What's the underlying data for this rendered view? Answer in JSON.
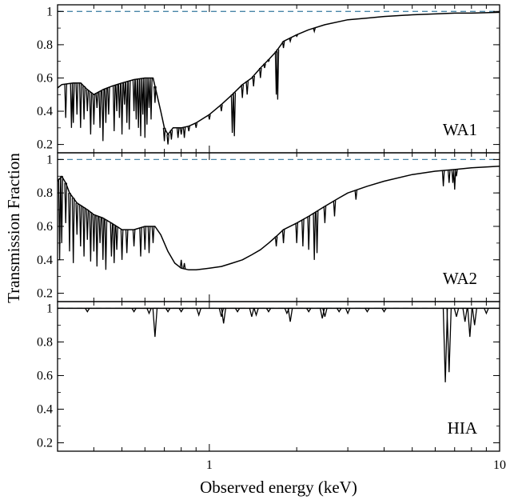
{
  "chart_data": {
    "type": "line",
    "ylabel": "Transmission Fraction",
    "xlabel": "Observed energy (keV)",
    "xscale": "log",
    "xlim": [
      0.3,
      10
    ],
    "x_tick_labels": [
      {
        "value": 1,
        "label": "1"
      },
      {
        "value": 10,
        "label": "10"
      }
    ],
    "y_tick_labels": [
      "0.2",
      "0.4",
      "0.6",
      "0.8",
      "1"
    ],
    "reference_line": {
      "y": 1,
      "style": "dashed",
      "color": "#4a86a8"
    },
    "line_color": "#000000",
    "panels": [
      {
        "label": "WA1",
        "ylim": [
          0.15,
          1.04
        ],
        "continuum": [
          [
            0.3,
            0.54
          ],
          [
            0.31,
            0.56
          ],
          [
            0.34,
            0.57
          ],
          [
            0.36,
            0.57
          ],
          [
            0.38,
            0.53
          ],
          [
            0.4,
            0.5
          ],
          [
            0.43,
            0.53
          ],
          [
            0.46,
            0.55
          ],
          [
            0.5,
            0.57
          ],
          [
            0.55,
            0.59
          ],
          [
            0.6,
            0.6
          ],
          [
            0.64,
            0.6
          ],
          [
            0.66,
            0.5
          ],
          [
            0.68,
            0.4
          ],
          [
            0.7,
            0.3
          ],
          [
            0.72,
            0.26
          ],
          [
            0.75,
            0.3
          ],
          [
            0.8,
            0.3
          ],
          [
            0.85,
            0.31
          ],
          [
            0.9,
            0.33
          ],
          [
            1.0,
            0.38
          ],
          [
            1.1,
            0.44
          ],
          [
            1.2,
            0.5
          ],
          [
            1.3,
            0.56
          ],
          [
            1.4,
            0.6
          ],
          [
            1.5,
            0.66
          ],
          [
            1.6,
            0.71
          ],
          [
            1.7,
            0.76
          ],
          [
            1.8,
            0.82
          ],
          [
            2.0,
            0.86
          ],
          [
            2.2,
            0.89
          ],
          [
            2.5,
            0.92
          ],
          [
            3.0,
            0.95
          ],
          [
            3.5,
            0.96
          ],
          [
            4.0,
            0.97
          ],
          [
            5.0,
            0.98
          ],
          [
            6.0,
            0.985
          ],
          [
            7.0,
            0.99
          ],
          [
            8.0,
            0.99
          ],
          [
            10.0,
            0.995
          ]
        ],
        "absorption_lines": [
          [
            0.32,
            0.36
          ],
          [
            0.335,
            0.3
          ],
          [
            0.34,
            0.33
          ],
          [
            0.35,
            0.38
          ],
          [
            0.36,
            0.3
          ],
          [
            0.37,
            0.35
          ],
          [
            0.38,
            0.4
          ],
          [
            0.39,
            0.26
          ],
          [
            0.4,
            0.32
          ],
          [
            0.41,
            0.42
          ],
          [
            0.42,
            0.3
          ],
          [
            0.43,
            0.22
          ],
          [
            0.44,
            0.33
          ],
          [
            0.45,
            0.38
          ],
          [
            0.47,
            0.28
          ],
          [
            0.48,
            0.4
          ],
          [
            0.49,
            0.36
          ],
          [
            0.5,
            0.26
          ],
          [
            0.51,
            0.44
          ],
          [
            0.52,
            0.33
          ],
          [
            0.53,
            0.29
          ],
          [
            0.55,
            0.4
          ],
          [
            0.56,
            0.35
          ],
          [
            0.57,
            0.3
          ],
          [
            0.58,
            0.25
          ],
          [
            0.59,
            0.38
          ],
          [
            0.6,
            0.24
          ],
          [
            0.61,
            0.32
          ],
          [
            0.62,
            0.42
          ],
          [
            0.63,
            0.35
          ],
          [
            0.65,
            0.45
          ],
          [
            0.7,
            0.22
          ],
          [
            0.72,
            0.2
          ],
          [
            0.74,
            0.23
          ],
          [
            0.78,
            0.24
          ],
          [
            0.8,
            0.26
          ],
          [
            0.82,
            0.24
          ],
          [
            0.85,
            0.28
          ],
          [
            0.9,
            0.3
          ],
          [
            1.0,
            0.35
          ],
          [
            1.1,
            0.4
          ],
          [
            1.2,
            0.27
          ],
          [
            1.22,
            0.25
          ],
          [
            1.3,
            0.48
          ],
          [
            1.35,
            0.5
          ],
          [
            1.42,
            0.55
          ],
          [
            1.5,
            0.6
          ],
          [
            1.55,
            0.66
          ],
          [
            1.6,
            0.7
          ],
          [
            1.7,
            0.5
          ],
          [
            1.72,
            0.47
          ],
          [
            1.8,
            0.78
          ],
          [
            1.9,
            0.82
          ],
          [
            2.0,
            0.85
          ],
          [
            2.3,
            0.88
          ]
        ]
      },
      {
        "label": "WA2",
        "ylim": [
          0.15,
          1.04
        ],
        "continuum": [
          [
            0.3,
            0.87
          ],
          [
            0.31,
            0.9
          ],
          [
            0.32,
            0.86
          ],
          [
            0.33,
            0.8
          ],
          [
            0.35,
            0.74
          ],
          [
            0.38,
            0.7
          ],
          [
            0.4,
            0.67
          ],
          [
            0.43,
            0.65
          ],
          [
            0.46,
            0.62
          ],
          [
            0.5,
            0.58
          ],
          [
            0.55,
            0.58
          ],
          [
            0.6,
            0.6
          ],
          [
            0.65,
            0.6
          ],
          [
            0.68,
            0.55
          ],
          [
            0.72,
            0.45
          ],
          [
            0.76,
            0.38
          ],
          [
            0.8,
            0.35
          ],
          [
            0.85,
            0.34
          ],
          [
            0.9,
            0.34
          ],
          [
            1.0,
            0.35
          ],
          [
            1.1,
            0.36
          ],
          [
            1.2,
            0.38
          ],
          [
            1.3,
            0.4
          ],
          [
            1.4,
            0.43
          ],
          [
            1.5,
            0.46
          ],
          [
            1.6,
            0.5
          ],
          [
            1.7,
            0.54
          ],
          [
            1.8,
            0.58
          ],
          [
            2.0,
            0.62
          ],
          [
            2.2,
            0.66
          ],
          [
            2.5,
            0.72
          ],
          [
            2.8,
            0.77
          ],
          [
            3.0,
            0.8
          ],
          [
            3.5,
            0.84
          ],
          [
            4.0,
            0.87
          ],
          [
            5.0,
            0.91
          ],
          [
            6.0,
            0.93
          ],
          [
            7.0,
            0.94
          ],
          [
            8.0,
            0.95
          ],
          [
            10.0,
            0.96
          ]
        ],
        "absorption_lines": [
          [
            0.305,
            0.4
          ],
          [
            0.31,
            0.5
          ],
          [
            0.32,
            0.62
          ],
          [
            0.33,
            0.45
          ],
          [
            0.34,
            0.38
          ],
          [
            0.35,
            0.55
          ],
          [
            0.36,
            0.48
          ],
          [
            0.37,
            0.42
          ],
          [
            0.38,
            0.52
          ],
          [
            0.39,
            0.39
          ],
          [
            0.4,
            0.45
          ],
          [
            0.41,
            0.36
          ],
          [
            0.42,
            0.5
          ],
          [
            0.43,
            0.4
          ],
          [
            0.44,
            0.34
          ],
          [
            0.46,
            0.42
          ],
          [
            0.47,
            0.38
          ],
          [
            0.48,
            0.46
          ],
          [
            0.5,
            0.4
          ],
          [
            0.52,
            0.44
          ],
          [
            0.55,
            0.48
          ],
          [
            0.58,
            0.42
          ],
          [
            0.6,
            0.46
          ],
          [
            0.62,
            0.44
          ],
          [
            0.64,
            0.5
          ],
          [
            0.8,
            0.4
          ],
          [
            0.82,
            0.38
          ],
          [
            1.7,
            0.48
          ],
          [
            1.8,
            0.5
          ],
          [
            2.0,
            0.5
          ],
          [
            2.1,
            0.48
          ],
          [
            2.2,
            0.46
          ],
          [
            2.3,
            0.4
          ],
          [
            2.35,
            0.44
          ],
          [
            2.5,
            0.62
          ],
          [
            2.7,
            0.66
          ],
          [
            3.2,
            0.76
          ],
          [
            6.4,
            0.84
          ],
          [
            6.7,
            0.86
          ],
          [
            6.9,
            0.86
          ],
          [
            7.0,
            0.82
          ],
          [
            7.1,
            0.9
          ]
        ]
      },
      {
        "label": "HIA",
        "ylim": [
          0.15,
          1.04
        ],
        "continuum": [
          [
            0.3,
            1.0
          ],
          [
            10.0,
            1.0
          ]
        ],
        "absorption_lines": [
          [
            0.38,
            0.98
          ],
          [
            0.55,
            0.98
          ],
          [
            0.62,
            0.97
          ],
          [
            0.65,
            0.83
          ],
          [
            0.72,
            0.98
          ],
          [
            0.8,
            0.98
          ],
          [
            0.92,
            0.96
          ],
          [
            1.1,
            0.95
          ],
          [
            1.12,
            0.91
          ],
          [
            1.25,
            0.98
          ],
          [
            1.4,
            0.95
          ],
          [
            1.45,
            0.96
          ],
          [
            1.6,
            0.98
          ],
          [
            1.85,
            0.97
          ],
          [
            1.9,
            0.92
          ],
          [
            2.2,
            0.98
          ],
          [
            2.45,
            0.94
          ],
          [
            2.5,
            0.95
          ],
          [
            2.8,
            0.98
          ],
          [
            3.0,
            0.97
          ],
          [
            3.5,
            0.98
          ],
          [
            4.0,
            0.98
          ],
          [
            6.5,
            0.56
          ],
          [
            6.7,
            0.62
          ],
          [
            7.1,
            0.95
          ],
          [
            7.6,
            0.92
          ],
          [
            7.9,
            0.83
          ],
          [
            8.2,
            0.9
          ],
          [
            9.0,
            0.97
          ]
        ]
      }
    ]
  }
}
